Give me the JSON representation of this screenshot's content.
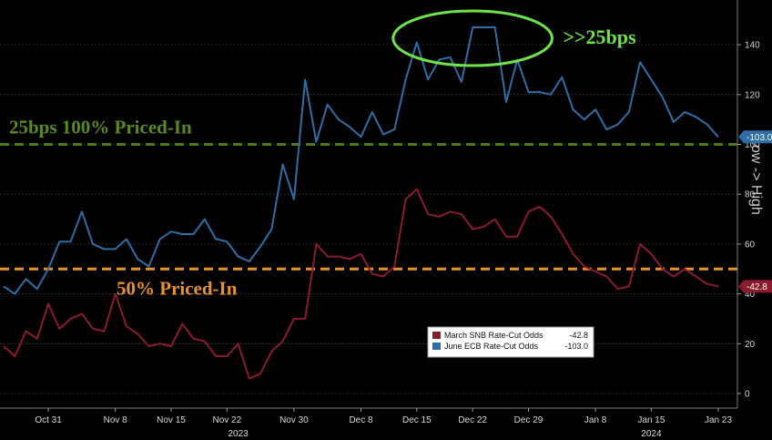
{
  "chart_data": {
    "type": "line",
    "x": [
      "Oct 25",
      "Oct 26",
      "Oct 27",
      "Oct 30",
      "Oct 31",
      "Nov 1",
      "Nov 2",
      "Nov 3",
      "Nov 6",
      "Nov 7",
      "Nov 8",
      "Nov 9",
      "Nov 10",
      "Nov 13",
      "Nov 14",
      "Nov 15",
      "Nov 16",
      "Nov 17",
      "Nov 20",
      "Nov 21",
      "Nov 22",
      "Nov 23",
      "Nov 24",
      "Nov 27",
      "Nov 28",
      "Nov 29",
      "Nov 30",
      "Dec 1",
      "Dec 4",
      "Dec 5",
      "Dec 6",
      "Dec 7",
      "Dec 8",
      "Dec 11",
      "Dec 12",
      "Dec 13",
      "Dec 14",
      "Dec 15",
      "Dec 18",
      "Dec 19",
      "Dec 20",
      "Dec 21",
      "Dec 22",
      "Dec 25",
      "Dec 26",
      "Dec 27",
      "Dec 28",
      "Dec 29",
      "Jan 1",
      "Jan 2",
      "Jan 3",
      "Jan 4",
      "Jan 5",
      "Jan 8",
      "Jan 9",
      "Jan 10",
      "Jan 11",
      "Jan 12",
      "Jan 15",
      "Jan 16",
      "Jan 17",
      "Jan 18",
      "Jan 19",
      "Jan 22",
      "Jan 23"
    ],
    "series": [
      {
        "name": "March SNB Rate-Cut Odds",
        "color": "#8b1a2e",
        "values": [
          19,
          15,
          25,
          22,
          36,
          26,
          30,
          32,
          26,
          25,
          40,
          27,
          24,
          19,
          20,
          19,
          28,
          22,
          21,
          15,
          15,
          20,
          6,
          8,
          17,
          21,
          30,
          30,
          60,
          55,
          55,
          54,
          56,
          48,
          47,
          51,
          78,
          82,
          72,
          71,
          73,
          72,
          66,
          67,
          70,
          63,
          63,
          73,
          75,
          71,
          64,
          56,
          51,
          49,
          47,
          42,
          43,
          60,
          56,
          50,
          47,
          50,
          47,
          44,
          43
        ],
        "last_value_label": "-42.8"
      },
      {
        "name": "June ECB Rate-Cut Odds",
        "color": "#2e6ea6",
        "values": [
          43,
          40,
          46,
          42,
          50,
          61,
          61,
          73,
          60,
          58,
          58,
          62,
          54,
          51,
          62,
          65,
          64,
          64,
          70,
          62,
          61,
          55,
          53,
          59,
          66,
          92,
          78,
          126,
          101,
          116,
          110,
          107,
          103,
          113,
          104,
          106,
          126,
          141,
          126,
          134,
          135,
          125,
          147,
          147,
          147,
          117,
          134,
          121,
          121,
          120,
          127,
          114,
          110,
          114,
          106,
          108,
          113,
          133,
          126,
          119,
          109,
          113,
          111,
          108,
          103
        ],
        "last_value_label": "-103.0"
      }
    ],
    "ylim": [
      -5,
      163
    ],
    "yticks": [
      0,
      20,
      40,
      60,
      80,
      100,
      120,
      140
    ],
    "ytick_labels": [
      "0",
      "20",
      "40",
      "60",
      "80",
      "100",
      "120",
      "140"
    ],
    "xtick_labels": [
      "Oct 31",
      "Nov 8",
      "Nov 15",
      "Nov 22",
      "Nov 30",
      "Dec 8",
      "Dec 15",
      "Dec 22",
      "Dec 29",
      "Jan 8",
      "Jan 15",
      "Jan 23"
    ],
    "xtick_dates": [
      "Oct 31",
      "Nov 8",
      "Nov 15",
      "Nov 22",
      "Nov 30",
      "Dec 8",
      "Dec 15",
      "Dec 22",
      "Dec 29",
      "Jan 8",
      "Jan 15",
      "Jan 23"
    ],
    "year_labels": [
      {
        "label": "2023",
        "at": "Nov 23"
      },
      {
        "label": "2024",
        "at": "Jan 15"
      }
    ],
    "y_axis_side_label": "Low -> High",
    "reference_lines": [
      {
        "value": 100,
        "color": "#4f7a1a",
        "label": "25bps 100% Priced-In"
      },
      {
        "value": 50,
        "color": "#e8922a",
        "label": "50% Priced-In"
      }
    ],
    "highlight_annotation": {
      "label": ">>25bps",
      "color": "#6fe34a",
      "x_from": "Dec 15",
      "x_to": "Dec 29"
    },
    "grid": true,
    "legend_position": "bottom-right",
    "background": "#000000"
  }
}
